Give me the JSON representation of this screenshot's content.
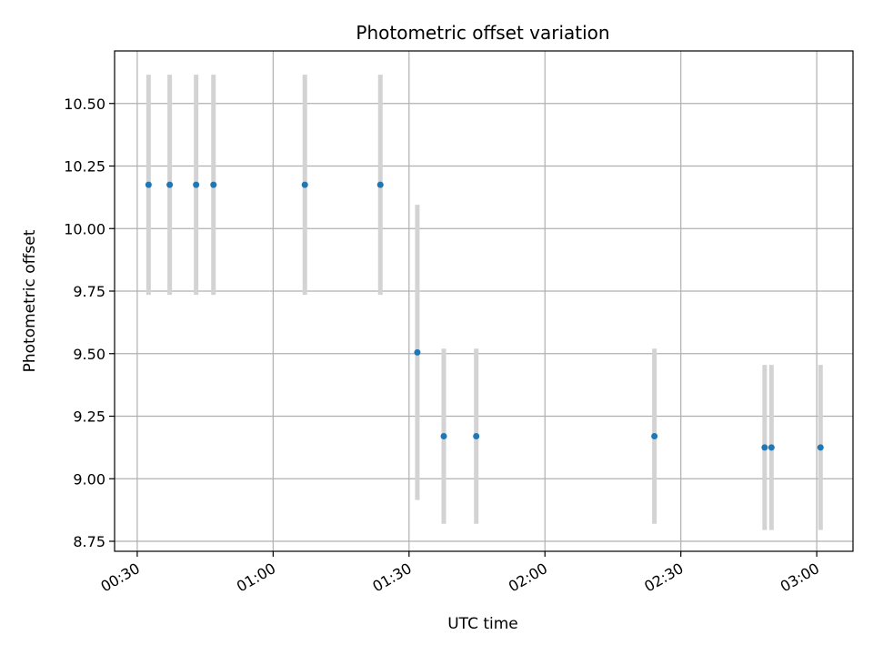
{
  "chart_data": {
    "type": "scatter",
    "title": "Photometric offset variation",
    "xlabel": "UTC time",
    "ylabel": "Photometric offset",
    "x_ticks": [
      "00:30",
      "01:00",
      "01:30",
      "02:00",
      "02:30",
      "03:00"
    ],
    "y_ticks": [
      "8.75",
      "9.00",
      "9.25",
      "9.50",
      "9.75",
      "10.00",
      "10.25",
      "10.50"
    ],
    "xlim": [
      "00:25",
      "03:08"
    ],
    "ylim": [
      8.71,
      10.71
    ],
    "grid": true,
    "marker_color": "#1f77b4",
    "errorbar_color": "#d3d3d3",
    "points": [
      {
        "x": "00:32:30",
        "y": 10.175,
        "err": 0.44
      },
      {
        "x": "00:37:10",
        "y": 10.175,
        "err": 0.44
      },
      {
        "x": "00:43:00",
        "y": 10.175,
        "err": 0.44
      },
      {
        "x": "00:46:50",
        "y": 10.175,
        "err": 0.44
      },
      {
        "x": "01:07:00",
        "y": 10.175,
        "err": 0.44
      },
      {
        "x": "01:23:40",
        "y": 10.175,
        "err": 0.44
      },
      {
        "x": "01:31:50",
        "y": 9.505,
        "err": 0.59
      },
      {
        "x": "01:37:40",
        "y": 9.17,
        "err": 0.35
      },
      {
        "x": "01:44:50",
        "y": 9.17,
        "err": 0.35
      },
      {
        "x": "02:24:10",
        "y": 9.17,
        "err": 0.35
      },
      {
        "x": "02:48:30",
        "y": 9.125,
        "err": 0.33
      },
      {
        "x": "02:50:00",
        "y": 9.125,
        "err": 0.33
      },
      {
        "x": "03:00:50",
        "y": 9.125,
        "err": 0.33
      }
    ]
  }
}
